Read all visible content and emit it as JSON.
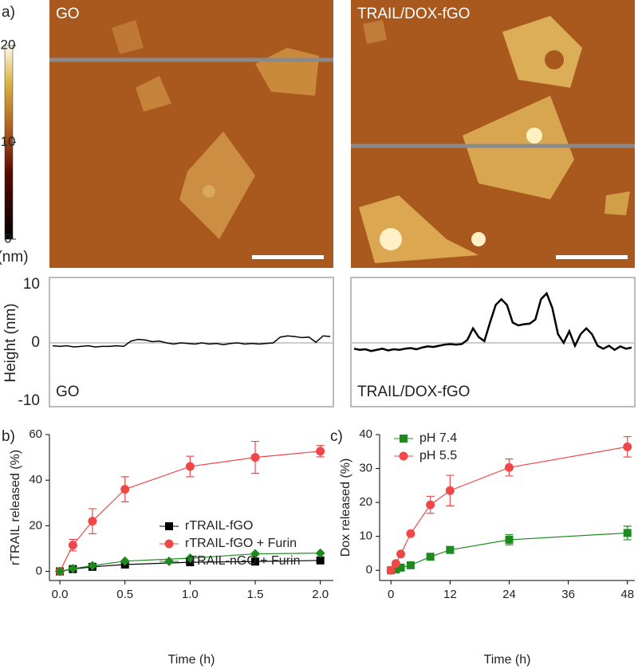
{
  "panel_labels": [
    "a)",
    "b)",
    "c)"
  ],
  "afm_images": [
    {
      "label": "GO"
    },
    {
      "label": "TRAIL/DOX-fGO"
    }
  ],
  "colorbar": {
    "ticks": [
      0,
      10,
      20
    ],
    "unit": "(nm)"
  },
  "chart_data": [
    {
      "type": "profile",
      "annotation": "GO",
      "ylabel": "Height (nm)",
      "ylim": [
        -10,
        10
      ],
      "yticks": [
        -10,
        0,
        10
      ],
      "zero_line": true,
      "series": [
        {
          "color": "#000000",
          "values": [
            -0.5,
            -0.6,
            -0.5,
            -0.7,
            -0.6,
            -0.5,
            -0.7,
            -0.6,
            -0.6,
            -0.5,
            -0.6,
            0.3,
            0.6,
            0.5,
            0.2,
            0.3,
            0.0,
            -0.2,
            0.0,
            -0.1,
            -0.2,
            0.0,
            -0.2,
            -0.1,
            -0.3,
            -0.1,
            0.0,
            -0.2,
            -0.1,
            -0.2,
            -0.1,
            0.0,
            1.0,
            1.2,
            1.1,
            0.9,
            1.0,
            0.1,
            1.2,
            1.1
          ]
        }
      ]
    },
    {
      "type": "profile",
      "annotation": "TRAIL/DOX-fGO",
      "ylim": [
        -10,
        10
      ],
      "zero_line": true,
      "series": [
        {
          "color": "#000000",
          "values": [
            -1,
            -1.2,
            -1.1,
            -1.4,
            -1.2,
            -1.0,
            -1.3,
            -1.1,
            -1.2,
            -1.0,
            -0.9,
            -1.1,
            -0.8,
            -0.6,
            -0.7,
            -0.5,
            -0.3,
            -0.2,
            -0.3,
            -0.2,
            0.5,
            2.5,
            1.0,
            0.3,
            3.5,
            6.5,
            7.5,
            6.5,
            3.5,
            3.0,
            3.2,
            3.3,
            4.0,
            7.5,
            8.5,
            6.0,
            1.5,
            0.0,
            2.0,
            -0.5,
            1.5,
            2.5,
            1.5,
            -0.5,
            -1.0,
            -0.5,
            -1.2,
            -0.6,
            -1.0,
            -0.8
          ]
        }
      ]
    },
    {
      "type": "line",
      "xlabel": "Time (h)",
      "ylabel": "rTRAIL released (%)",
      "xlim": [
        -0.08,
        2.1
      ],
      "ylim": [
        -4,
        60
      ],
      "xticks": [
        {
          "value": 0,
          "label": "0.0"
        },
        {
          "value": 0.5,
          "label": "0.5"
        },
        {
          "value": 1,
          "label": "1.0"
        },
        {
          "value": 1.5,
          "label": "1.5"
        },
        {
          "value": 2,
          "label": "2.0"
        }
      ],
      "yticks": [
        0,
        20,
        40,
        60
      ],
      "legend": "center right",
      "x": [
        0,
        0.1,
        0.25,
        0.5,
        1,
        1.5,
        2
      ],
      "series": [
        {
          "name": "rTRAIL-fGO",
          "color": "#000000",
          "marker": "square",
          "values": [
            0,
            1,
            2,
            3,
            4,
            4.3,
            4.8
          ]
        },
        {
          "name": "rTRAIL-fGO + Furin",
          "color": "#f04848",
          "marker": "circle",
          "values": [
            0,
            11.5,
            22,
            36,
            46,
            50,
            52.7
          ],
          "errors": [
            0,
            2.5,
            5.5,
            5.5,
            4.5,
            7,
            2.5
          ]
        },
        {
          "name": "rTRAIL-nGO + Furin",
          "color": "#1e8a1e",
          "marker": "diamond",
          "values": [
            0,
            1.2,
            2.5,
            4.5,
            5.8,
            7.7,
            8
          ]
        }
      ]
    },
    {
      "type": "line",
      "xlabel": "Time (h)",
      "ylabel": "Dox released (%)",
      "xlim": [
        -2.3,
        49.5
      ],
      "ylim": [
        -3,
        40
      ],
      "xticks": [
        0,
        12,
        24,
        36,
        48
      ],
      "yticks": [
        0,
        10,
        20,
        30,
        40
      ],
      "legend": "upper left",
      "x": [
        0,
        1,
        2,
        4,
        8,
        12,
        24,
        48
      ],
      "series": [
        {
          "name": "pH 7.4",
          "color": "#1e8a1e",
          "marker": "square",
          "values": [
            0,
            0.3,
            0.8,
            1.5,
            4,
            6,
            9,
            11
          ],
          "errors": [
            0,
            0,
            0,
            0,
            0.5,
            1,
            1.5,
            2
          ]
        },
        {
          "name": "pH 5.5",
          "color": "#f04848",
          "marker": "circle",
          "values": [
            0,
            2,
            4.8,
            10.8,
            19.3,
            23.5,
            30.3,
            36.4
          ],
          "errors": [
            0,
            0,
            0,
            0,
            2.5,
            4.5,
            2.5,
            3
          ]
        }
      ]
    }
  ]
}
